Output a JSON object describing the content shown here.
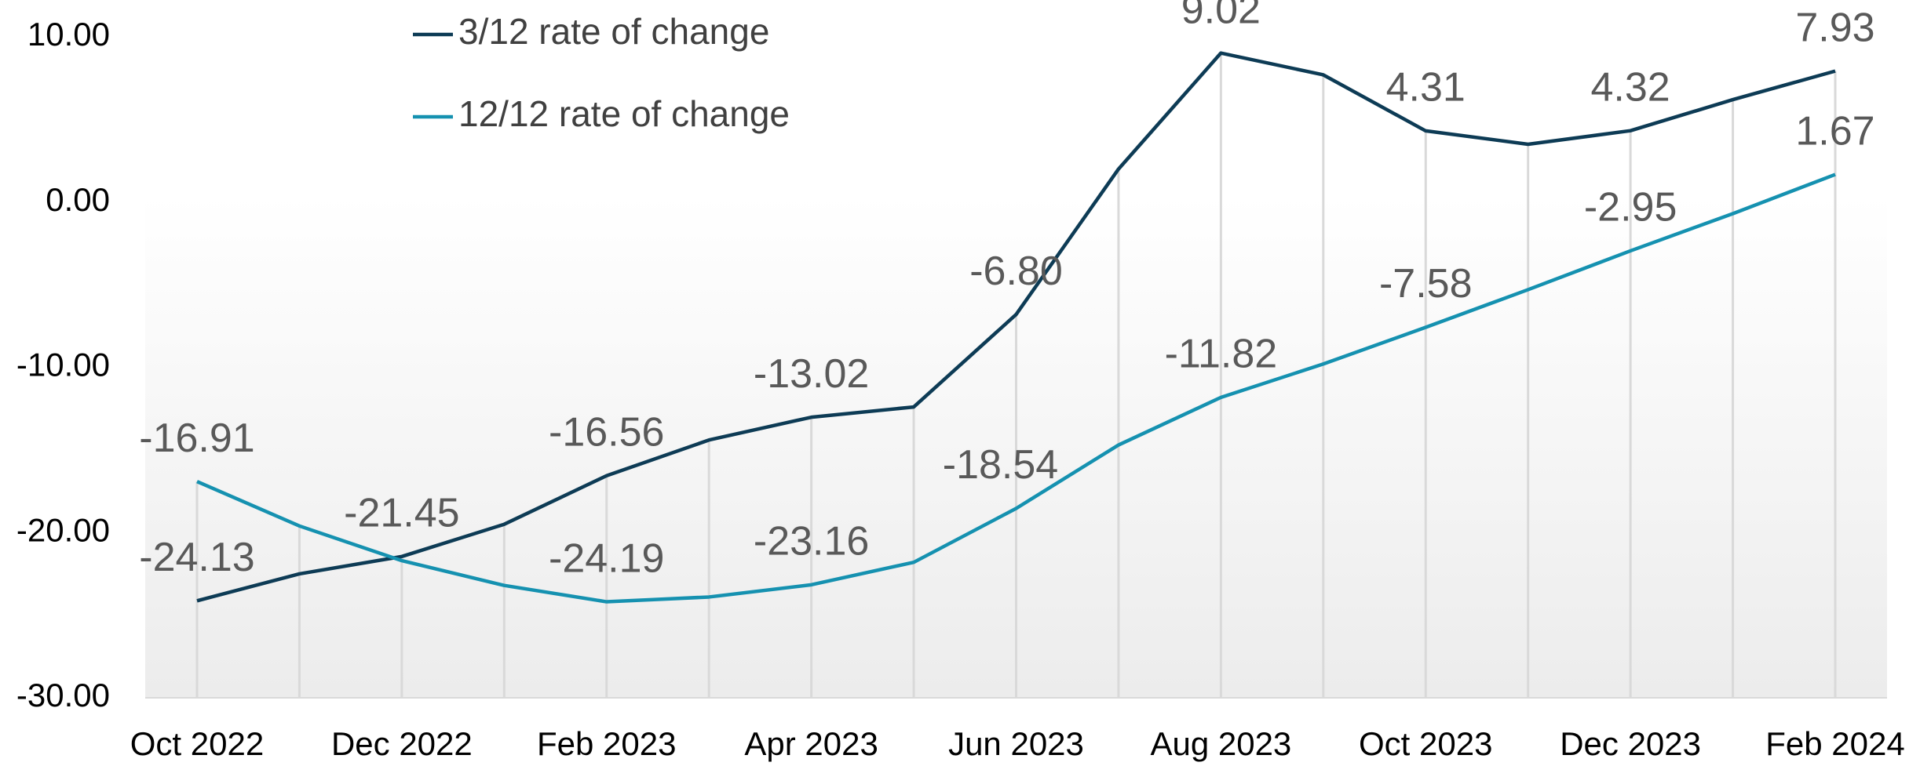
{
  "chart_data": {
    "type": "line",
    "categories": [
      "Oct 2022",
      null,
      "Dec 2022",
      null,
      "Feb 2023",
      null,
      "Apr 2023",
      null,
      "Jun 2023",
      null,
      "Aug 2023",
      null,
      "Oct 2023",
      null,
      "Dec 2023",
      null,
      "Feb 2024"
    ],
    "series": [
      {
        "name": "3/12 rate of change",
        "color": "#0d3b55",
        "values": [
          -24.13,
          -22.5,
          -21.45,
          -19.5,
          -16.56,
          -14.4,
          -13.02,
          -12.4,
          -6.8,
          2.0,
          9.02,
          7.7,
          4.31,
          3.5,
          4.32,
          6.2,
          7.93
        ],
        "value_labels": [
          "-24.13",
          null,
          "-21.45",
          null,
          "-16.56",
          null,
          "-13.02",
          null,
          "-6.80",
          null,
          "9.02",
          null,
          "4.31",
          null,
          "4.32",
          null,
          "7.93"
        ]
      },
      {
        "name": "12/12 rate of change",
        "color": "#1591b0",
        "values": [
          -16.91,
          -19.6,
          -21.7,
          -23.2,
          -24.19,
          -23.9,
          -23.16,
          -21.8,
          -18.54,
          -14.7,
          -11.82,
          -9.8,
          -7.58,
          -5.3,
          -2.95,
          -0.7,
          1.67
        ],
        "value_labels": [
          "-16.91",
          null,
          null,
          null,
          "-24.19",
          null,
          "-23.16",
          null,
          "-18.54",
          null,
          "-11.82",
          null,
          "-7.58",
          null,
          "-2.95",
          null,
          "1.67"
        ]
      }
    ],
    "ylim": [
      -30,
      10
    ],
    "yticks": [
      {
        "value": -30,
        "label": "-30.00"
      },
      {
        "value": -20,
        "label": "-20.00"
      },
      {
        "value": -10,
        "label": "-10.00"
      },
      {
        "value": 0,
        "label": "0.00"
      },
      {
        "value": 10,
        "label": "10.00"
      }
    ],
    "legend": "top-left"
  }
}
